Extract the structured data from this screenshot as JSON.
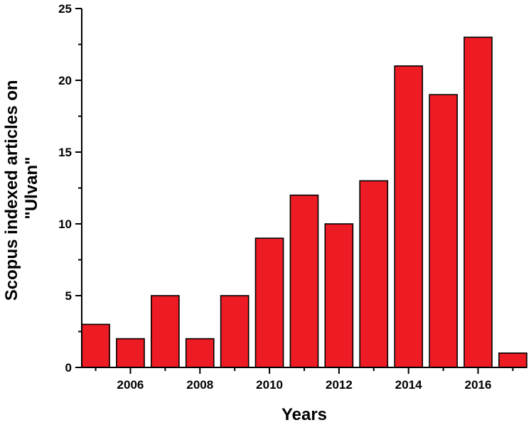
{
  "chart_data": {
    "type": "bar",
    "title": "",
    "xlabel": "Years",
    "ylabel_lines": [
      "Scopus indexed articles on",
      "\"Ulvan\""
    ],
    "x": [
      2005,
      2006,
      2007,
      2008,
      2009,
      2010,
      2011,
      2012,
      2013,
      2014,
      2015,
      2016,
      2017
    ],
    "values": [
      3,
      2,
      5,
      2,
      5,
      9,
      12,
      10,
      13,
      21,
      19,
      23,
      1
    ],
    "xlim": [
      2004.6,
      2017.4
    ],
    "ylim": [
      0,
      25
    ],
    "x_ticks": [
      2006,
      2008,
      2010,
      2012,
      2014,
      2016
    ],
    "x_tick_labels": [
      "2006",
      "2008",
      "2010",
      "2012",
      "2014",
      "2016"
    ],
    "y_ticks": [
      0,
      5,
      10,
      15,
      20,
      25
    ],
    "y_tick_labels": [
      "0",
      "5",
      "10",
      "15",
      "20",
      "25"
    ],
    "bar_color": "#ed1c24",
    "grid": false,
    "legend": "none"
  }
}
